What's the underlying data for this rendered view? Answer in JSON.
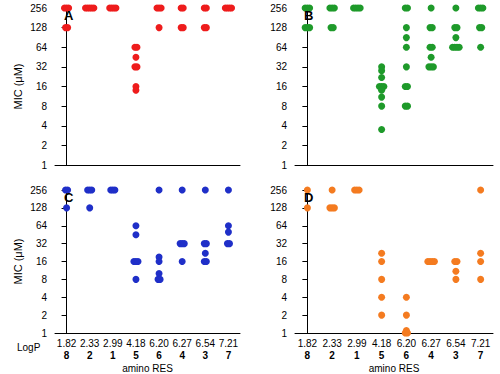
{
  "chart_data": [
    {
      "type": "scatter",
      "title": "A",
      "y_label": "MIC (μM)",
      "color": "#ee1c1c",
      "log": "y",
      "tick_labels": "y",
      "categories": [
        "8",
        "2",
        "1",
        "5",
        "6",
        "4",
        "3",
        "7"
      ],
      "ylim": [
        1,
        256
      ],
      "yticks": [
        1,
        2,
        4,
        8,
        16,
        32,
        64,
        128,
        256
      ],
      "values": [
        [
          256,
          256,
          256,
          128,
          128
        ],
        [
          256,
          256,
          256,
          256,
          256
        ],
        [
          256,
          256,
          256,
          256
        ],
        [
          64,
          64,
          45,
          32,
          32,
          16,
          14
        ],
        [
          256,
          256,
          256,
          128
        ],
        [
          256,
          256,
          128,
          128
        ],
        [
          256,
          256,
          128,
          128
        ],
        [
          256,
          256,
          256,
          256
        ]
      ]
    },
    {
      "type": "scatter",
      "title": "B",
      "color": "#1e9a2a",
      "log": "y",
      "tick_labels": "y",
      "categories": [
        "8",
        "2",
        "1",
        "5",
        "6",
        "4",
        "3",
        "7"
      ],
      "ylim": [
        1,
        256
      ],
      "yticks": [
        1,
        2,
        4,
        8,
        16,
        32,
        64,
        128,
        256
      ],
      "values": [
        [
          256,
          256,
          256,
          128,
          128,
          128
        ],
        [
          256,
          256,
          256,
          128,
          128
        ],
        [
          256,
          256,
          256,
          256
        ],
        [
          32,
          28,
          22,
          16,
          16,
          16,
          14,
          11,
          8,
          3.5
        ],
        [
          256,
          256,
          128,
          90,
          64,
          32,
          16,
          16,
          8,
          8
        ],
        [
          256,
          128,
          128,
          64,
          64,
          45,
          32,
          32,
          32
        ],
        [
          256,
          128,
          128,
          90,
          64,
          64,
          64,
          64
        ],
        [
          256,
          256,
          256,
          128,
          128,
          64
        ]
      ]
    },
    {
      "type": "scatter",
      "title": "C",
      "y_label": "MIC (μM)",
      "x_label": "amino RES",
      "color": "#1f2fc8",
      "log": "y",
      "categories": [
        "8",
        "2",
        "1",
        "5",
        "6",
        "4",
        "3",
        "7"
      ],
      "logp_title": "LogP",
      "logp": [
        "1.82",
        "2.33",
        "2.99",
        "4.18",
        "6.20",
        "6.27",
        "6.54",
        "7.21"
      ],
      "ylim": [
        1,
        256
      ],
      "yticks": [
        1,
        2,
        4,
        8,
        16,
        32,
        64,
        128,
        256
      ],
      "values": [
        [
          256,
          256,
          128
        ],
        [
          256,
          256,
          256,
          128
        ],
        [
          256,
          256,
          256
        ],
        [
          64,
          45,
          16,
          16,
          16,
          8
        ],
        [
          256,
          19,
          16,
          10,
          8,
          8
        ],
        [
          256,
          32,
          32,
          32,
          16
        ],
        [
          256,
          32,
          32,
          22,
          16,
          16
        ],
        [
          256,
          64,
          50,
          32,
          32
        ]
      ]
    },
    {
      "type": "scatter",
      "title": "D",
      "x_label": "amino RES",
      "color": "#f47b20",
      "log": "y",
      "categories": [
        "8",
        "2",
        "1",
        "5",
        "6",
        "4",
        "3",
        "7"
      ],
      "logp": [
        "1.82",
        "2.33",
        "2.99",
        "4.18",
        "6.20",
        "6.27",
        "6.54",
        "7.21"
      ],
      "ylim": [
        1,
        256
      ],
      "yticks": [
        1,
        2,
        4,
        8,
        16,
        32,
        64,
        128,
        256
      ],
      "values": [
        [
          256,
          128
        ],
        [
          256,
          128,
          128,
          128
        ],
        [
          256,
          256,
          256
        ],
        [
          22,
          16,
          8,
          4,
          2
        ],
        [
          4,
          2,
          1.1,
          1,
          1
        ],
        [
          16,
          16,
          16,
          16
        ],
        [
          16,
          16,
          11,
          8
        ],
        [
          256,
          22,
          16,
          8
        ]
      ]
    }
  ]
}
